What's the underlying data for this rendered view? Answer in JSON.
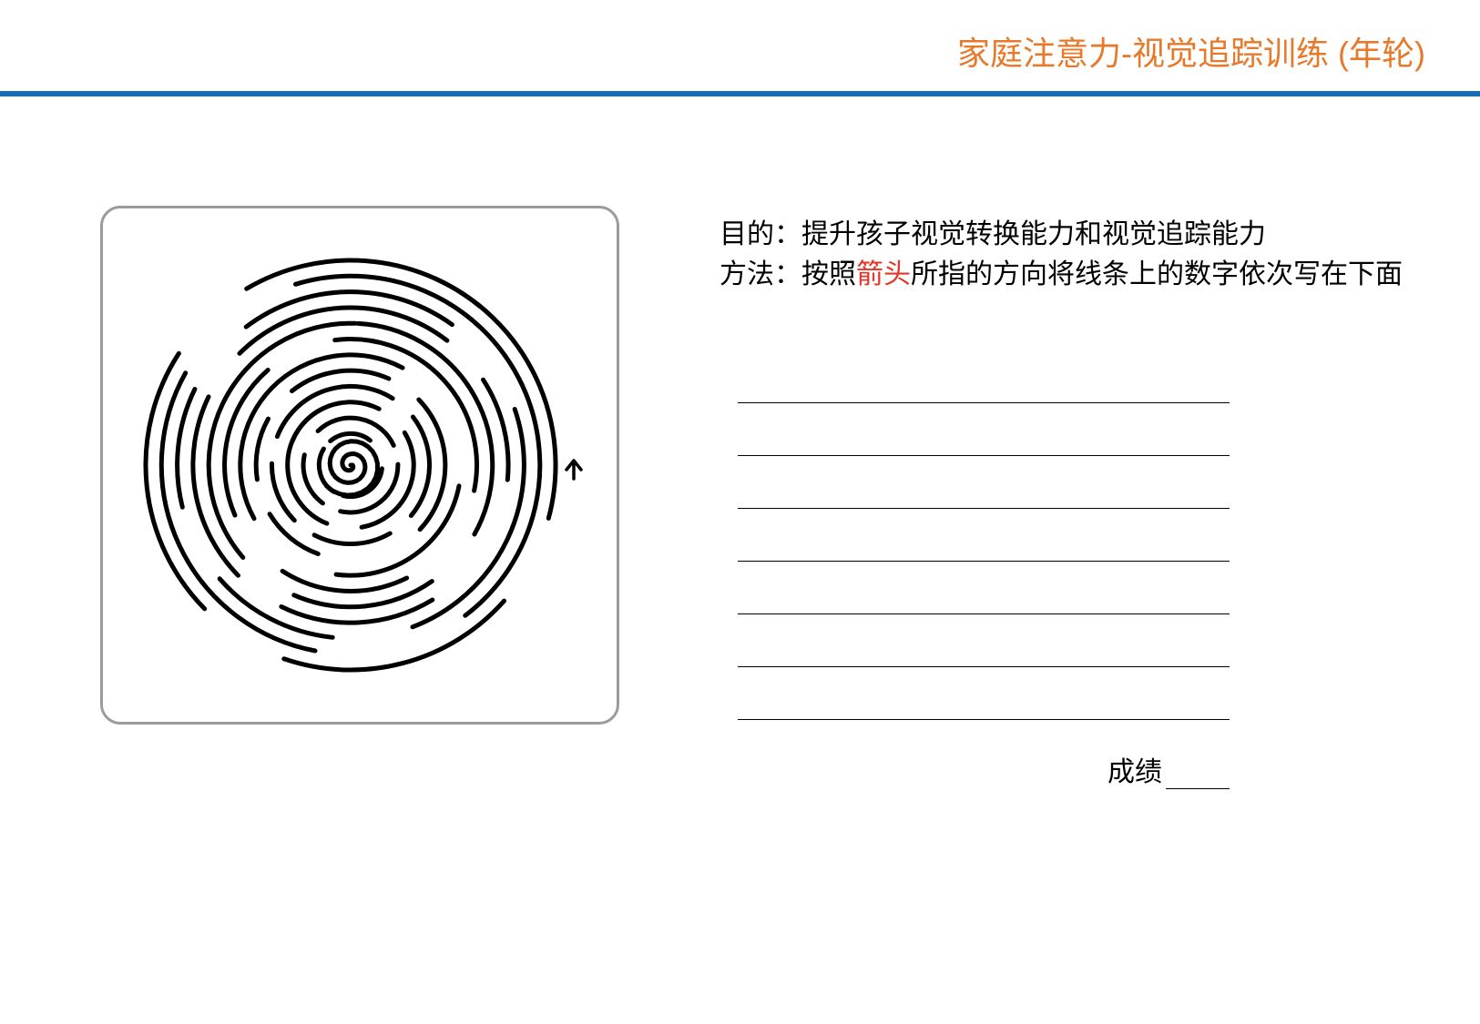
{
  "header": {
    "title": "家庭注意力-视觉追踪训练 (年轮)",
    "title_color": "#e8792a",
    "rule_color": "#1a6bb3"
  },
  "maze": {
    "border_color": "#9b9b9b",
    "stroke_color": "#000000",
    "stroke_width": 5,
    "arrow_color": "#000000",
    "rings": 12
  },
  "instructions": {
    "line1_prefix": "目的：",
    "line1_text": "提升孩子视觉转换能力和视觉追踪能力",
    "line2_prefix": "方法：按照",
    "line2_highlight": "箭头",
    "line2_suffix": "所指的方向将线条上的数字依次写在下面",
    "highlight_color": "#e53527"
  },
  "answer_lines": {
    "count": 7
  },
  "score": {
    "label": "成绩"
  }
}
